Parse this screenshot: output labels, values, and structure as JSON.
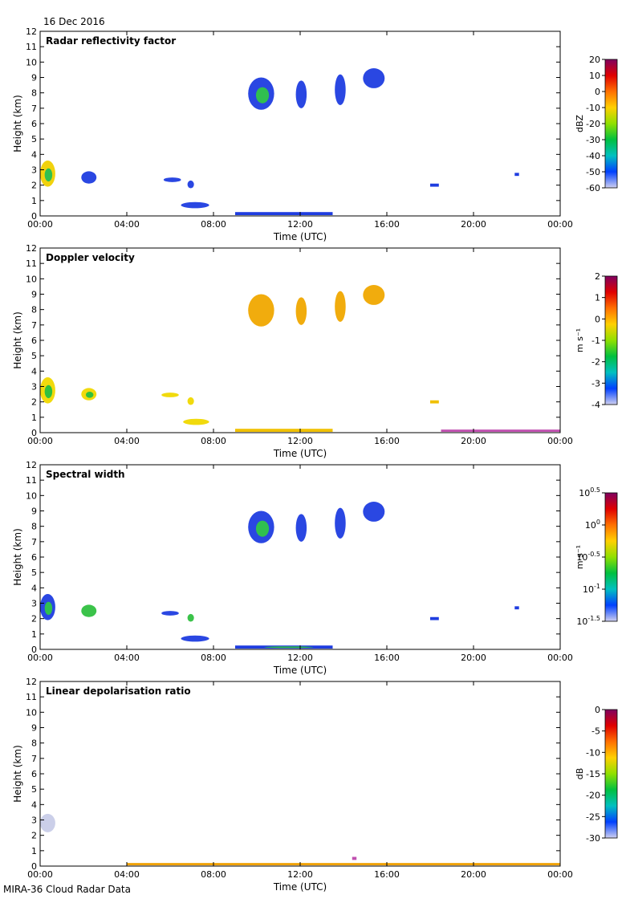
{
  "header": {
    "date": "16 Dec 2016"
  },
  "footer": {
    "instrument": "MIRA-36 Cloud Radar Data"
  },
  "colors": {
    "blue": "#1f3de0",
    "lightblue": "#5a7cff",
    "cyan": "#00c0d0",
    "green": "#30c040",
    "yellow": "#f0d800",
    "orange": "#f0a000",
    "red": "#e02020",
    "purple": "#c050b0",
    "lavender": "#c8cce8"
  },
  "chart_data": [
    {
      "type": "heatmap",
      "title": "Radar reflectivity factor",
      "xlabel": "Time (UTC)",
      "ylabel": "Height (km)",
      "x_ticks": [
        "00:00",
        "04:00",
        "08:00",
        "12:00",
        "16:00",
        "20:00",
        "00:00"
      ],
      "y_ticks": [
        "0",
        "1",
        "2",
        "3",
        "4",
        "5",
        "6",
        "7",
        "8",
        "9",
        "10",
        "11",
        "12"
      ],
      "xlim": [
        0,
        24
      ],
      "ylim": [
        0,
        12
      ],
      "colorbar": {
        "label": "dBZ",
        "ticks": [
          "20",
          "10",
          "0",
          "-10",
          "-20",
          "-30",
          "-40",
          "-50",
          "-60"
        ],
        "stops": [
          "#800060",
          "#e00000",
          "#ff7000",
          "#ffd000",
          "#90e000",
          "#00c040",
          "#00c0c0",
          "#0040ff",
          "#d0d0f0"
        ]
      },
      "features": [
        {
          "t0": 0.0,
          "t1": 0.7,
          "h0": 1.9,
          "h1": 3.6,
          "color": "#f0d000",
          "core": "#30c050"
        },
        {
          "t0": 1.9,
          "t1": 2.6,
          "h0": 2.1,
          "h1": 2.9,
          "color": "#1f3de0"
        },
        {
          "t0": 5.7,
          "t1": 6.5,
          "h0": 2.2,
          "h1": 2.5,
          "color": "#1f3de0"
        },
        {
          "t0": 6.8,
          "t1": 7.1,
          "h0": 1.8,
          "h1": 2.3,
          "color": "#1f3de0"
        },
        {
          "t0": 6.5,
          "t1": 7.8,
          "h0": 0.5,
          "h1": 0.9,
          "color": "#1f3de0"
        },
        {
          "t0": 9.0,
          "t1": 13.5,
          "h0": 0.05,
          "h1": 0.25,
          "color": "#1f3de0"
        },
        {
          "t0": 9.6,
          "t1": 10.8,
          "h0": 6.9,
          "h1": 9.0,
          "color": "#1f3de0",
          "core": "#30c050"
        },
        {
          "t0": 11.8,
          "t1": 12.3,
          "h0": 7.0,
          "h1": 8.8,
          "color": "#1f3de0"
        },
        {
          "t0": 13.6,
          "t1": 14.1,
          "h0": 7.2,
          "h1": 9.2,
          "color": "#1f3de0"
        },
        {
          "t0": 14.9,
          "t1": 15.9,
          "h0": 8.3,
          "h1": 9.6,
          "color": "#1f3de0"
        },
        {
          "t0": 18.0,
          "t1": 18.4,
          "h0": 1.9,
          "h1": 2.1,
          "color": "#1f3de0"
        },
        {
          "t0": 21.9,
          "t1": 22.1,
          "h0": 2.6,
          "h1": 2.8,
          "color": "#1f3de0"
        }
      ]
    },
    {
      "type": "heatmap",
      "title": "Doppler velocity",
      "xlabel": "Time (UTC)",
      "ylabel": "Height (km)",
      "x_ticks": [
        "00:00",
        "04:00",
        "08:00",
        "12:00",
        "16:00",
        "20:00",
        "00:00"
      ],
      "y_ticks": [
        "0",
        "1",
        "2",
        "3",
        "4",
        "5",
        "6",
        "7",
        "8",
        "9",
        "10",
        "11",
        "12"
      ],
      "xlim": [
        0,
        24
      ],
      "ylim": [
        0,
        12
      ],
      "colorbar": {
        "label": "m s⁻¹",
        "ticks": [
          "2",
          "1",
          "0",
          "-1",
          "-2",
          "-3",
          "-4"
        ],
        "stops": [
          "#800060",
          "#e00000",
          "#ff7000",
          "#ffd000",
          "#90e000",
          "#00c040",
          "#00c0c0",
          "#0040ff",
          "#d0d0f0"
        ]
      },
      "features": [
        {
          "t0": 0.0,
          "t1": 0.7,
          "h0": 1.9,
          "h1": 3.6,
          "color": "#f0d800",
          "core": "#30c040"
        },
        {
          "t0": 1.9,
          "t1": 2.6,
          "h0": 2.1,
          "h1": 2.9,
          "color": "#f0d800",
          "core": "#30c040"
        },
        {
          "t0": 5.6,
          "t1": 6.4,
          "h0": 2.3,
          "h1": 2.6,
          "color": "#f0d800"
        },
        {
          "t0": 6.8,
          "t1": 7.1,
          "h0": 1.8,
          "h1": 2.3,
          "color": "#f0d800"
        },
        {
          "t0": 6.6,
          "t1": 7.8,
          "h0": 0.5,
          "h1": 0.9,
          "color": "#f0d800"
        },
        {
          "t0": 9.0,
          "t1": 13.5,
          "h0": 0.05,
          "h1": 0.25,
          "color": "#f0c000"
        },
        {
          "t0": 9.6,
          "t1": 10.8,
          "h0": 6.9,
          "h1": 9.0,
          "color": "#f0a800"
        },
        {
          "t0": 11.8,
          "t1": 12.3,
          "h0": 7.0,
          "h1": 8.8,
          "color": "#f0a800"
        },
        {
          "t0": 13.6,
          "t1": 14.1,
          "h0": 7.2,
          "h1": 9.2,
          "color": "#f0a800"
        },
        {
          "t0": 14.9,
          "t1": 15.9,
          "h0": 8.3,
          "h1": 9.6,
          "color": "#f0a800"
        },
        {
          "t0": 18.0,
          "t1": 18.4,
          "h0": 1.9,
          "h1": 2.1,
          "color": "#f0c000"
        },
        {
          "t0": 18.5,
          "t1": 24.0,
          "h0": 0.05,
          "h1": 0.2,
          "color": "#c050b0"
        }
      ]
    },
    {
      "type": "heatmap",
      "title": "Spectral width",
      "xlabel": "Time (UTC)",
      "ylabel": "Height (km)",
      "x_ticks": [
        "00:00",
        "04:00",
        "08:00",
        "12:00",
        "16:00",
        "20:00",
        "00:00"
      ],
      "y_ticks": [
        "0",
        "1",
        "2",
        "3",
        "4",
        "5",
        "6",
        "7",
        "8",
        "9",
        "10",
        "11",
        "12"
      ],
      "xlim": [
        0,
        24
      ],
      "ylim": [
        0,
        12
      ],
      "colorbar": {
        "label": "m s⁻¹",
        "ticks": [
          "10^0.5",
          "10^0",
          "10^-0.5",
          "10^-1",
          "10^-1.5"
        ],
        "stops": [
          "#800060",
          "#e00000",
          "#ff7000",
          "#ffd000",
          "#90e000",
          "#00c040",
          "#00c0c0",
          "#0040ff",
          "#d0d0f0"
        ]
      },
      "features": [
        {
          "t0": 0.0,
          "t1": 0.7,
          "h0": 1.9,
          "h1": 3.6,
          "color": "#1f3de0",
          "core": "#30c050"
        },
        {
          "t0": 1.9,
          "t1": 2.6,
          "h0": 2.1,
          "h1": 2.9,
          "color": "#30c040"
        },
        {
          "t0": 5.6,
          "t1": 6.4,
          "h0": 2.2,
          "h1": 2.5,
          "color": "#1f3de0"
        },
        {
          "t0": 6.8,
          "t1": 7.1,
          "h0": 1.8,
          "h1": 2.3,
          "color": "#30c040"
        },
        {
          "t0": 6.5,
          "t1": 7.8,
          "h0": 0.5,
          "h1": 0.9,
          "color": "#1f3de0"
        },
        {
          "t0": 9.0,
          "t1": 13.5,
          "h0": 0.05,
          "h1": 0.25,
          "color": "#1f3de0",
          "core": "#30c040"
        },
        {
          "t0": 9.6,
          "t1": 10.8,
          "h0": 6.9,
          "h1": 9.0,
          "color": "#1f3de0",
          "core": "#30c050"
        },
        {
          "t0": 11.8,
          "t1": 12.3,
          "h0": 7.0,
          "h1": 8.8,
          "color": "#1f3de0"
        },
        {
          "t0": 13.6,
          "t1": 14.1,
          "h0": 7.2,
          "h1": 9.2,
          "color": "#1f3de0"
        },
        {
          "t0": 14.9,
          "t1": 15.9,
          "h0": 8.3,
          "h1": 9.6,
          "color": "#1f3de0"
        },
        {
          "t0": 18.0,
          "t1": 18.4,
          "h0": 1.9,
          "h1": 2.1,
          "color": "#1f3de0"
        },
        {
          "t0": 21.9,
          "t1": 22.1,
          "h0": 2.6,
          "h1": 2.8,
          "color": "#1f3de0"
        }
      ]
    },
    {
      "type": "heatmap",
      "title": "Linear depolarisation ratio",
      "xlabel": "Time (UTC)",
      "ylabel": "Height (km)",
      "x_ticks": [
        "00:00",
        "04:00",
        "08:00",
        "12:00",
        "16:00",
        "20:00",
        "00:00"
      ],
      "y_ticks": [
        "0",
        "1",
        "2",
        "3",
        "4",
        "5",
        "6",
        "7",
        "8",
        "9",
        "10",
        "11",
        "12"
      ],
      "xlim": [
        0,
        24
      ],
      "ylim": [
        0,
        12
      ],
      "colorbar": {
        "label": "dB",
        "ticks": [
          "0",
          "-5",
          "-10",
          "-15",
          "-20",
          "-25",
          "-30"
        ],
        "stops": [
          "#800060",
          "#e00000",
          "#ff7000",
          "#ffd000",
          "#90e000",
          "#00c040",
          "#00c0c0",
          "#0040ff",
          "#d0d0f0"
        ]
      },
      "features": [
        {
          "t0": 0.0,
          "t1": 0.7,
          "h0": 2.2,
          "h1": 3.4,
          "color": "#c8cce8"
        },
        {
          "t0": 4.0,
          "t1": 24.0,
          "h0": 0.05,
          "h1": 0.2,
          "color": "#f0a000"
        },
        {
          "t0": 14.4,
          "t1": 14.6,
          "h0": 0.4,
          "h1": 0.6,
          "color": "#c050b0"
        }
      ]
    }
  ]
}
